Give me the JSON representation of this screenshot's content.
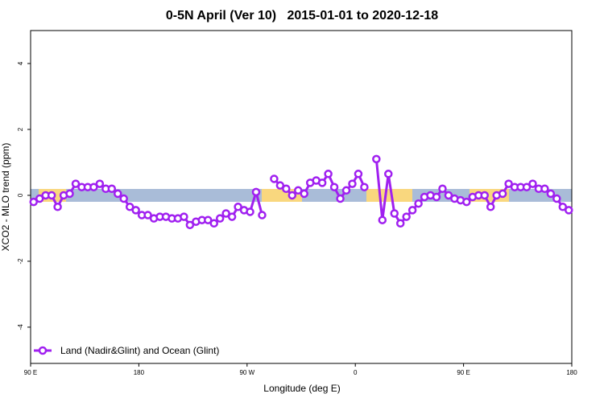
{
  "chart_data": {
    "type": "line",
    "title": "0-5N April (Ver 10)   2015-01-01 to 2020-12-18",
    "xlabel": "Longitude (deg E)",
    "ylabel": "XCO2 - MLO trend (ppm)",
    "xlim": [
      90,
      540
    ],
    "ylim": [
      -5.1,
      5
    ],
    "xticks": [
      {
        "value": 90,
        "label": "90 E"
      },
      180,
      {
        "value": 270,
        "label": "90 W"
      },
      {
        "value": 360,
        "label": "0"
      },
      {
        "value": 450,
        "label": "90 E"
      },
      {
        "value": 540,
        "label": "180"
      }
    ],
    "yticks": [
      -4,
      -2,
      0,
      2,
      4
    ],
    "x": [
      92.5,
      97.5,
      102.5,
      107.5,
      112.5,
      117.5,
      122.5,
      127.5,
      132.5,
      137.5,
      142.5,
      147.5,
      152.5,
      157.5,
      162.5,
      167.5,
      172.5,
      177.5,
      182.5,
      187.5,
      192.5,
      197.5,
      202.5,
      207.5,
      212.5,
      217.5,
      222.5,
      227.5,
      232.5,
      237.5,
      242.5,
      247.5,
      252.5,
      257.5,
      262.5,
      267.5,
      272.5,
      277.5,
      282.5,
      287.5,
      292.5,
      297.5,
      302.5,
      307.5,
      312.5,
      317.5,
      322.5,
      327.5,
      332.5,
      337.5,
      342.5,
      347.5,
      352.5,
      357.5,
      362.5,
      367.5,
      372.5,
      377.5,
      382.5,
      387.5,
      392.5,
      397.5,
      402.5,
      407.5,
      412.5,
      417.5,
      422.5,
      427.5,
      432.5,
      437.5,
      442.5,
      447.5,
      452.5,
      457.5,
      462.5,
      467.5,
      472.5,
      477.5,
      482.5,
      487.5,
      492.5,
      497.5,
      502.5,
      507.5,
      512.5,
      517.5,
      522.5,
      527.5,
      532.5,
      537.5
    ],
    "series": [
      {
        "name": "Land (Nadir&Glint) and Ocean (Glint)",
        "color": "#a020f0",
        "values": [
          -0.2,
          -0.1,
          0,
          0,
          -0.35,
          0,
          0.05,
          0.35,
          0.25,
          0.25,
          0.25,
          0.35,
          0.2,
          0.2,
          0.05,
          -0.1,
          -0.35,
          -0.45,
          -0.6,
          -0.6,
          -0.7,
          -0.65,
          -0.65,
          -0.7,
          -0.7,
          -0.65,
          -0.9,
          -0.8,
          -0.75,
          -0.75,
          -0.85,
          -0.7,
          -0.55,
          -0.65,
          -0.35,
          -0.45,
          -0.5,
          0.1,
          -0.6,
          null,
          0.5,
          0.3,
          0.2,
          0,
          0.15,
          0.05,
          0.38,
          0.45,
          0.38,
          0.65,
          0.25,
          -0.1,
          0.15,
          0.35,
          0.65,
          0.25,
          null,
          1.1,
          -0.75,
          0.65,
          -0.55,
          -0.85,
          -0.65,
          -0.45,
          -0.25,
          -0.05,
          0,
          -0.05,
          0.2,
          0,
          -0.1,
          -0.15,
          -0.2,
          -0.05,
          0,
          0,
          -0.35,
          0,
          0.05,
          0.35,
          0.25,
          0.25,
          0.25,
          0.35,
          0.2,
          0.2,
          0.05,
          -0.1,
          -0.35,
          -0.45
        ]
      }
    ],
    "legend": "bottom-left"
  }
}
